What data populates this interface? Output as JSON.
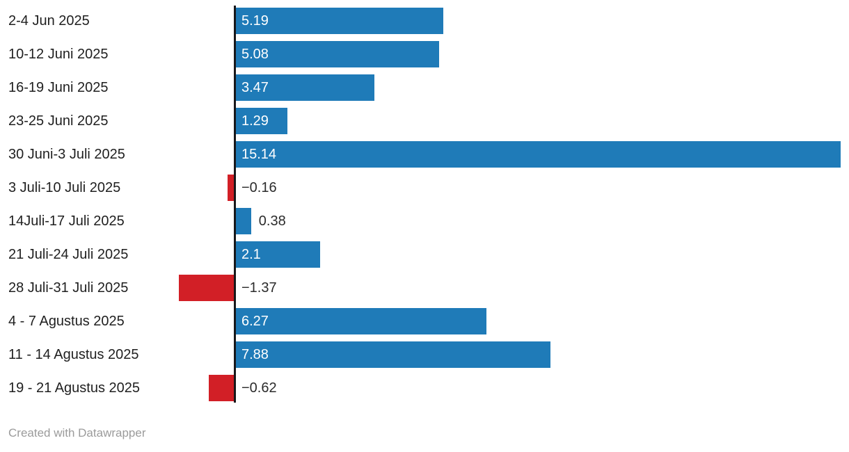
{
  "chart_data": {
    "type": "bar",
    "orientation": "horizontal",
    "title": "",
    "xlabel": "",
    "ylabel": "",
    "grid": false,
    "legend": false,
    "xlim": [
      -1.37,
      15.14
    ],
    "categories": [
      "2-4 Jun 2025",
      "10-12 Juni 2025",
      "16-19 Juni 2025",
      "23-25 Juni 2025",
      "30 Juni-3 Juli 2025",
      "3 Juli-10 Juli 2025",
      "14Juli-17 Juli 2025",
      "21 Juli-24 Juli 2025",
      "28 Juli-31 Juli 2025",
      "4 - 7 Agustus 2025",
      "11 - 14 Agustus 2025",
      "19 - 21 Agustus 2025"
    ],
    "values": [
      5.19,
      5.08,
      3.47,
      1.29,
      15.14,
      -0.16,
      0.38,
      2.1,
      -1.37,
      6.27,
      7.88,
      -0.62
    ],
    "display_values": [
      "5.19",
      "5.08",
      "3.47",
      "1.29",
      "15.14",
      "−0.16",
      "0.38",
      "2.1",
      "−1.37",
      "6.27",
      "7.88",
      "−0.62"
    ],
    "positive_color": "#1f7bb8",
    "negative_color": "#d21f26",
    "axis_color": "#18181b",
    "label_color": "#1f1f1f",
    "value_inside_color": "#ffffff",
    "value_outside_color": "#2b2b2b"
  },
  "footer": {
    "attribution": "Created with Datawrapper"
  }
}
